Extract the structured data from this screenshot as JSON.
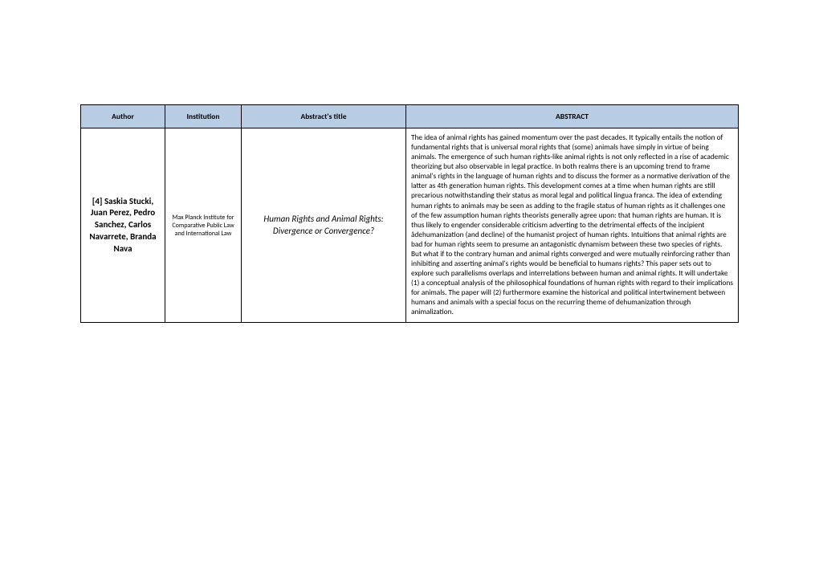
{
  "table": {
    "header_bg": "#b8cce4",
    "columns": [
      "Author",
      "Institution",
      "Abstract's title",
      "ABSTRACT"
    ],
    "rows": [
      {
        "author": "[4] Saskia Stucki, Juan Perez, Pedro Sanchez, Carlos Navarrete, Branda Nava",
        "institution": "Max Planck Institute for Comparative Public Law and International Law",
        "title": "Human Rights and Animal Rights: Divergence or Convergence?",
        "abstract": "The idea of animal rights has gained momentum over the past decades. It typically entails the notion of fundamental rights that is universal moral rights that (some) animals have simply in virtue of being animals. The emergence of such human rights-like animal rights is not only reflected in a rise of academic theorizing but also observable in legal practice. In both realms there is an upcoming trend to frame animal's rights in the language of human rights and to discuss the former as a normative derivation of the latter as 4th generation human rights. This development comes at a time when human rights are still precarious notwithstanding their status as moral legal and political lingua franca. The idea of extending human rights to animals may be seen as adding to the fragile status of human rights as it challenges one of the few assumption human rights theorists generally agree upon: that human rights are human. It is thus likely to engender considerable criticism adverting to the detrimental effects of the incipient âdehumanization (and decline) of the humanist project of human rights. Intuitions that animal rights are bad for human rights seem to presume an antagonistic dynamism between these two species of rights. But what if to the contrary human and animal rights converged and were mutually reinforcing rather than inhibiting and asserting animal's rights would be beneficial to humans rights? This paper sets out to explore such parallelisms overlaps and interrelations between human and animal rights. It will undertake (1) a conceptual analysis of the philosophical foundations of human rights with regard to their implications for animals. The paper will (2) furthermore examine the historical and political intertwinement between humans and animals with a special focus on the recurring theme of dehumanization through animalization."
      }
    ]
  }
}
